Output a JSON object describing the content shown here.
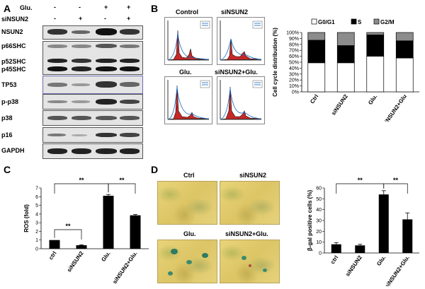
{
  "panel_labels": {
    "a": "A",
    "b": "B",
    "c": "C",
    "d": "D"
  },
  "panel_a": {
    "treatment_rows": [
      {
        "label": "Glu.",
        "marks": [
          "-",
          "-",
          "+",
          "+"
        ]
      },
      {
        "label": "siNSUN2",
        "marks": [
          "-",
          "+",
          "-",
          "+"
        ]
      }
    ],
    "blots": [
      "NSUN2",
      "p66SHC",
      "p52SHC",
      "p45SHC",
      "TP53",
      "p-p38",
      "p38",
      "p16",
      "GAPDH"
    ]
  },
  "panel_b": {
    "flow_titles": [
      "Control",
      "siNSUN2",
      "Glu.",
      "siNSUN2+Glu."
    ],
    "legend": [
      "G0/G1",
      "S",
      "G2/M"
    ]
  },
  "panel_d": {
    "micro_titles": [
      "Ctrl",
      "siNSUN2",
      "Glu.",
      "siNSUN2+Glu."
    ]
  },
  "colors": {
    "g0g1": "#ffffff",
    "s": "#000000",
    "g2m": "#8c8c8c",
    "bar_black": "#000000"
  },
  "chart_data": [
    {
      "id": "cell-cycle",
      "type": "bar",
      "stacked": true,
      "categories": [
        "Ctrl",
        "siNSUN2",
        "Glu.",
        "siNSUN2+Glu"
      ],
      "series": [
        {
          "name": "G0/G1",
          "values": [
            49,
            49,
            60,
            57
          ]
        },
        {
          "name": "S",
          "values": [
            38,
            29,
            36,
            29
          ]
        },
        {
          "name": "G2/M",
          "values": [
            13,
            22,
            4,
            14
          ]
        }
      ],
      "ylabel": "Cell cycle distribution (%)",
      "ylim": [
        0,
        100
      ],
      "yticks": [
        "0%",
        "10%",
        "20%",
        "30%",
        "40%",
        "50%",
        "60%",
        "70%",
        "80%",
        "90%",
        "100%"
      ],
      "legend_position": "top"
    },
    {
      "id": "ros",
      "type": "bar",
      "categories": [
        "ctrl",
        "siNSUN2",
        "Glu.",
        "siNSUN2+Glu."
      ],
      "values": [
        1.0,
        0.4,
        6.1,
        3.85
      ],
      "errors": [
        0,
        0.05,
        0.15,
        0.1
      ],
      "ylabel": "ROS (fold)",
      "ylim": [
        0,
        7
      ],
      "yticks": [
        "0",
        "1",
        "2",
        "3",
        "4",
        "5",
        "6",
        "7"
      ],
      "annotations": [
        {
          "from": "ctrl",
          "to": "siNSUN2",
          "label": "**"
        },
        {
          "from": "ctrl",
          "to": "Glu.",
          "label": "**"
        },
        {
          "from": "Glu.",
          "to": "siNSUN2+Glu.",
          "label": "**"
        }
      ]
    },
    {
      "id": "bgal",
      "type": "bar",
      "categories": [
        "ctrl",
        "siNSUN2",
        "Glu.",
        "siNSUN2+Glu."
      ],
      "values": [
        8,
        7,
        54,
        31
      ],
      "errors": [
        1.5,
        1,
        3.5,
        6
      ],
      "ylabel": "β-gal positive cells (%)",
      "ylim": [
        0,
        60
      ],
      "yticks": [
        "0",
        "10",
        "20",
        "30",
        "40",
        "50",
        "60"
      ],
      "annotations": [
        {
          "from": "ctrl",
          "to": "Glu.",
          "label": "**"
        },
        {
          "from": "Glu.",
          "to": "siNSUN2+Glu.",
          "label": "**"
        }
      ]
    }
  ]
}
